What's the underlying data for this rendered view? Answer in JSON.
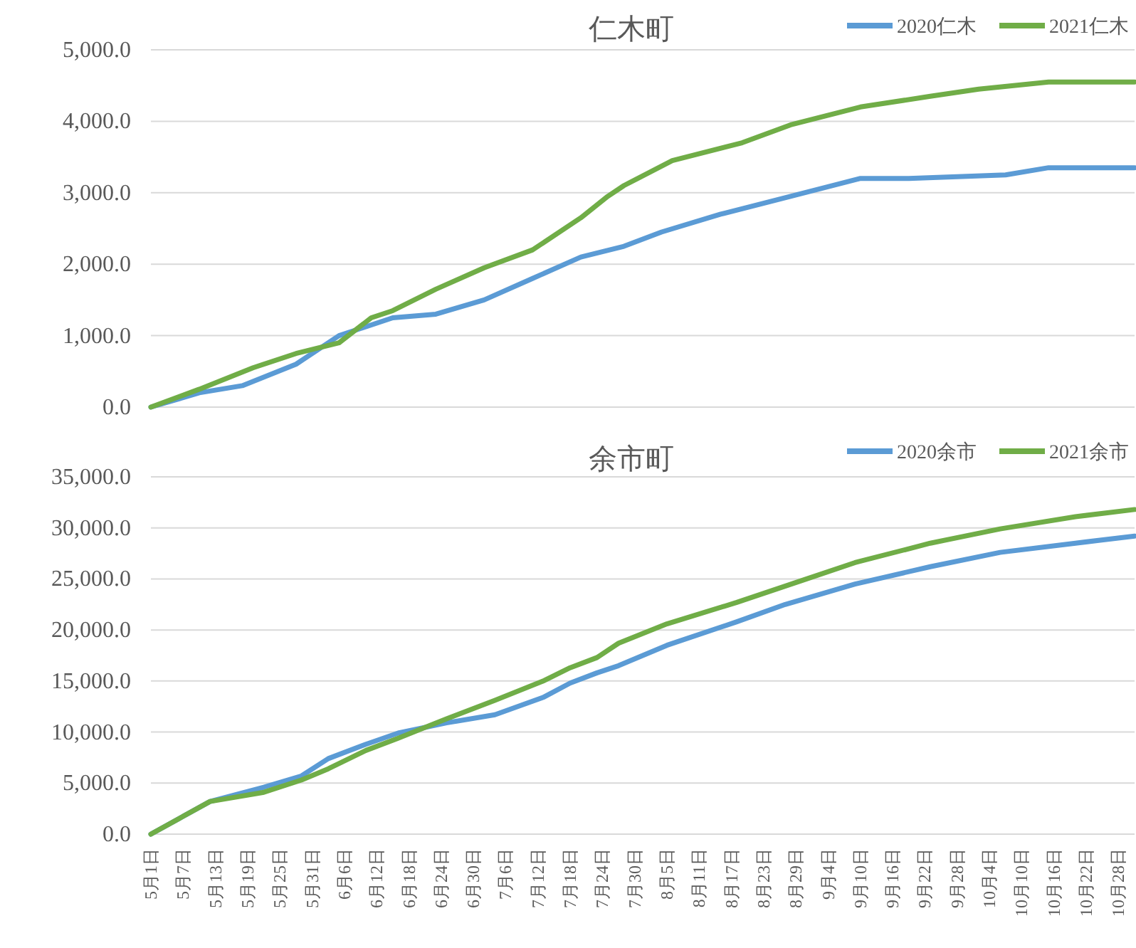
{
  "chart_data": [
    {
      "type": "line",
      "title": "仁木町",
      "xlim": [
        "--05-01",
        "--10-31"
      ],
      "ylim": [
        0,
        5000
      ],
      "tick_labels": "y",
      "grid": "y",
      "legend": "top right",
      "yticks": [
        {
          "value": 0,
          "label": "0.0"
        },
        {
          "value": 1000,
          "label": "1,000.0"
        },
        {
          "value": 2000,
          "label": "2,000.0"
        },
        {
          "value": 3000,
          "label": "3,000.0"
        },
        {
          "value": 4000,
          "label": "4,000.0"
        },
        {
          "value": 5000,
          "label": "5,000.0"
        }
      ],
      "series": [
        {
          "name": "2020仁木",
          "color": "#5b9bd5",
          "x": [
            "--05-01",
            "--05-10",
            "--05-18",
            "--05-28",
            "--06-05",
            "--06-15",
            "--06-23",
            "--07-02",
            "--07-11",
            "--07-20",
            "--07-28",
            "--08-04",
            "--08-15",
            "--08-28",
            "--09-10",
            "--09-19",
            "--10-07",
            "--10-15",
            "--10-31"
          ],
          "values": [
            0,
            200,
            300,
            600,
            1000,
            1250,
            1300,
            1500,
            1800,
            2100,
            2250,
            2450,
            2700,
            2950,
            3200,
            3200,
            3250,
            3350,
            3350
          ]
        },
        {
          "name": "2021仁木",
          "color": "#70ad47",
          "x": [
            "--05-01",
            "--05-10",
            "--05-20",
            "--05-28",
            "--06-05",
            "--06-11",
            "--06-15",
            "--06-23",
            "--07-02",
            "--07-11",
            "--07-20",
            "--07-25",
            "--07-28",
            "--08-06",
            "--08-19",
            "--08-28",
            "--09-10",
            "--09-23",
            "--10-02",
            "--10-15",
            "--10-31"
          ],
          "values": [
            0,
            250,
            550,
            750,
            900,
            1250,
            1350,
            1650,
            1950,
            2200,
            2650,
            2950,
            3100,
            3450,
            3700,
            3950,
            4200,
            4350,
            4450,
            4550,
            4550
          ]
        }
      ]
    },
    {
      "type": "line",
      "title": "余市町",
      "xlim": [
        "--05-01",
        "--10-31"
      ],
      "ylim": [
        0,
        35000
      ],
      "grid": "y",
      "legend": "top right",
      "yticks": [
        {
          "value": 0,
          "label": "0.0"
        },
        {
          "value": 5000,
          "label": "5,000.0"
        },
        {
          "value": 10000,
          "label": "10,000.0"
        },
        {
          "value": 15000,
          "label": "15,000.0"
        },
        {
          "value": 20000,
          "label": "20,000.0"
        },
        {
          "value": 25000,
          "label": "25,000.0"
        },
        {
          "value": 30000,
          "label": "30,000.0"
        },
        {
          "value": 35000,
          "label": "35,000.0"
        }
      ],
      "xticks": [
        {
          "value": "--05-01",
          "label": "5月1日"
        },
        {
          "value": "--05-07",
          "label": "5月7日"
        },
        {
          "value": "--05-13",
          "label": "5月13日"
        },
        {
          "value": "--05-19",
          "label": "5月19日"
        },
        {
          "value": "--05-25",
          "label": "5月25日"
        },
        {
          "value": "--05-31",
          "label": "5月31日"
        },
        {
          "value": "--06-06",
          "label": "6月6日"
        },
        {
          "value": "--06-12",
          "label": "6月12日"
        },
        {
          "value": "--06-18",
          "label": "6月18日"
        },
        {
          "value": "--06-24",
          "label": "6月24日"
        },
        {
          "value": "--06-30",
          "label": "6月30日"
        },
        {
          "value": "--07-06",
          "label": "7月6日"
        },
        {
          "value": "--07-12",
          "label": "7月12日"
        },
        {
          "value": "--07-18",
          "label": "7月18日"
        },
        {
          "value": "--07-24",
          "label": "7月24日"
        },
        {
          "value": "--07-30",
          "label": "7月30日"
        },
        {
          "value": "--08-05",
          "label": "8月5日"
        },
        {
          "value": "--08-11",
          "label": "8月11日"
        },
        {
          "value": "--08-17",
          "label": "8月17日"
        },
        {
          "value": "--08-23",
          "label": "8月23日"
        },
        {
          "value": "--08-29",
          "label": "8月29日"
        },
        {
          "value": "--09-04",
          "label": "9月4日"
        },
        {
          "value": "--09-10",
          "label": "9月10日"
        },
        {
          "value": "--09-16",
          "label": "9月16日"
        },
        {
          "value": "--09-22",
          "label": "9月22日"
        },
        {
          "value": "--09-28",
          "label": "9月28日"
        },
        {
          "value": "--10-04",
          "label": "10月4日"
        },
        {
          "value": "--10-10",
          "label": "10月10日"
        },
        {
          "value": "--10-16",
          "label": "10月16日"
        },
        {
          "value": "--10-22",
          "label": "10月22日"
        },
        {
          "value": "--10-28",
          "label": "10月28日"
        }
      ],
      "series": [
        {
          "name": "2020余市",
          "color": "#5b9bd5",
          "x": [
            "--05-01",
            "--05-12",
            "--05-22",
            "--05-29",
            "--06-03",
            "--06-10",
            "--06-16",
            "--06-25",
            "--07-04",
            "--07-13",
            "--07-18",
            "--07-23",
            "--07-27",
            "--08-05",
            "--08-18",
            "--08-27",
            "--09-09",
            "--09-23",
            "--10-06",
            "--10-20",
            "--10-31"
          ],
          "values": [
            0,
            3200,
            4600,
            5700,
            7400,
            8800,
            9900,
            10900,
            11700,
            13400,
            14800,
            15800,
            16500,
            18500,
            20800,
            22500,
            24500,
            26200,
            27600,
            28500,
            29200
          ]
        },
        {
          "name": "2021余市",
          "color": "#70ad47",
          "x": [
            "--05-01",
            "--05-12",
            "--05-22",
            "--05-29",
            "--06-03",
            "--06-10",
            "--06-16",
            "--06-25",
            "--07-04",
            "--07-13",
            "--07-18",
            "--07-23",
            "--07-27",
            "--08-05",
            "--08-18",
            "--08-31",
            "--09-09",
            "--09-23",
            "--10-06",
            "--10-20",
            "--10-31"
          ],
          "values": [
            0,
            3200,
            4100,
            5300,
            6400,
            8200,
            9400,
            11300,
            13100,
            15000,
            16300,
            17300,
            18700,
            20600,
            22700,
            25000,
            26600,
            28500,
            29900,
            31100,
            31800
          ]
        }
      ]
    }
  ]
}
